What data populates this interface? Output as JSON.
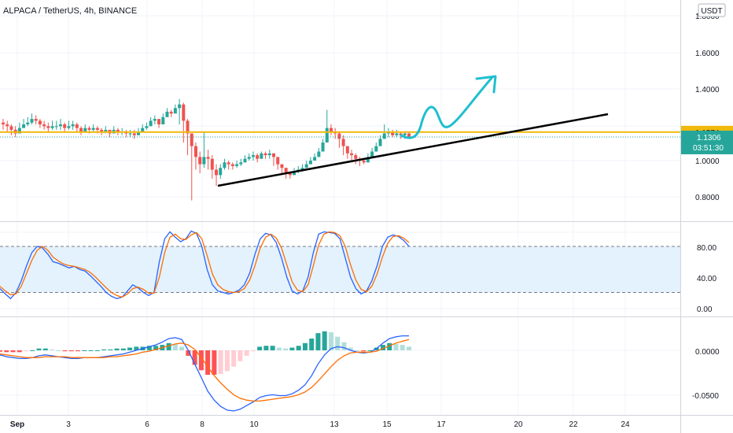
{
  "header": {
    "title": "ALPACA / TetherUS, 4h, BINANCE",
    "currency_badge": "USDT"
  },
  "colors": {
    "up": "#26a69a",
    "down": "#ef5350",
    "hline": "#f0b90b",
    "trendline": "#000000",
    "projection": "#1fbfd0",
    "k_line": "#2962ff",
    "d_line": "#ff6d00",
    "stoch_band": "#e3f2fd",
    "hist_up_strong": "#26a69a",
    "hist_up_weak": "#b2dfdb",
    "hist_down_strong": "#ff5252",
    "hist_down_weak": "#ffcdd2"
  },
  "chart_data": [
    {
      "type": "candlestick",
      "title": "ALPACA / TetherUS, 4h, BINANCE",
      "y_ticks": [
        "1.8000",
        "1.6000",
        "1.4000",
        "1.0000",
        "0.8000"
      ],
      "ylim": [
        0.7,
        1.8
      ],
      "x_ticks": [
        "Sep",
        "3",
        "6",
        "8",
        "10",
        "13",
        "15",
        "17",
        "20",
        "22",
        "24"
      ],
      "horizontal_line": {
        "value": 1.1574,
        "label": "1.1574"
      },
      "last_price": {
        "value": 1.1306,
        "label": "1.1306",
        "countdown": "03:51:30"
      },
      "closes": [
        1.2,
        1.19,
        1.17,
        1.15,
        1.18,
        1.2,
        1.21,
        1.23,
        1.22,
        1.2,
        1.19,
        1.18,
        1.19,
        1.19,
        1.2,
        1.18,
        1.19,
        1.2,
        1.18,
        1.16,
        1.18,
        1.17,
        1.18,
        1.17,
        1.16,
        1.17,
        1.15,
        1.17,
        1.16,
        1.16,
        1.15,
        1.15,
        1.14,
        1.16,
        1.18,
        1.19,
        1.22,
        1.23,
        1.2,
        1.24,
        1.27,
        1.26,
        1.29,
        1.31,
        1.22,
        1.15,
        1.08,
        1.02,
        0.98,
        1.02,
        1.01,
        0.95,
        0.92,
        0.96,
        0.99,
        0.98,
        0.97,
        0.98,
        0.99,
        1.01,
        1.02,
        1.03,
        1.01,
        1.04,
        1.03,
        1.04,
        1.02,
        0.98,
        0.96,
        0.93,
        0.92,
        0.94,
        0.95,
        0.96,
        0.98,
        1.0,
        1.02,
        1.05,
        1.1,
        1.18,
        1.16,
        1.15,
        1.12,
        1.08,
        1.04,
        1.03,
        1.01,
        1.0,
        0.99,
        1.02,
        1.05,
        1.08,
        1.12,
        1.15,
        1.16,
        1.14,
        1.15,
        1.14,
        1.15,
        1.13
      ],
      "lows": [
        1.17,
        1.16,
        1.14,
        1.13,
        1.15,
        1.18,
        1.19,
        1.2,
        1.2,
        1.18,
        1.17,
        1.16,
        1.17,
        1.17,
        1.17,
        1.16,
        1.17,
        1.17,
        1.16,
        1.14,
        1.16,
        1.15,
        1.16,
        1.15,
        1.14,
        1.15,
        1.13,
        1.15,
        1.14,
        1.14,
        1.13,
        1.13,
        1.12,
        1.14,
        1.16,
        1.17,
        1.2,
        1.2,
        1.18,
        1.22,
        1.25,
        1.24,
        1.27,
        1.2,
        1.1,
        1.03,
        0.78,
        0.95,
        0.93,
        0.96,
        0.95,
        0.9,
        0.86,
        0.9,
        0.95,
        0.95,
        0.95,
        0.96,
        0.97,
        0.99,
        1.0,
        1.0,
        0.99,
        1.01,
        1.01,
        1.01,
        0.97,
        0.95,
        0.92,
        0.9,
        0.9,
        0.92,
        0.93,
        0.94,
        0.96,
        0.98,
        1.0,
        1.03,
        1.08,
        1.12,
        1.14,
        1.12,
        1.07,
        1.03,
        1.01,
        1.0,
        0.98,
        0.97,
        0.98,
        1.0,
        1.03,
        1.06,
        1.1,
        1.12,
        1.13,
        1.13,
        1.13,
        1.12,
        1.12,
        1.12
      ],
      "highs": [
        1.23,
        1.22,
        1.2,
        1.19,
        1.21,
        1.23,
        1.24,
        1.26,
        1.25,
        1.23,
        1.22,
        1.21,
        1.22,
        1.22,
        1.23,
        1.21,
        1.22,
        1.22,
        1.21,
        1.19,
        1.2,
        1.19,
        1.2,
        1.19,
        1.18,
        1.19,
        1.17,
        1.19,
        1.18,
        1.18,
        1.17,
        1.17,
        1.17,
        1.18,
        1.2,
        1.21,
        1.24,
        1.25,
        1.23,
        1.26,
        1.29,
        1.28,
        1.31,
        1.34,
        1.32,
        1.23,
        1.15,
        1.1,
        1.05,
        1.16,
        1.06,
        1.03,
        0.98,
        0.98,
        1.01,
        1.0,
        0.99,
        1.0,
        1.01,
        1.03,
        1.04,
        1.05,
        1.04,
        1.05,
        1.05,
        1.06,
        1.04,
        1.0,
        0.98,
        0.96,
        0.94,
        0.96,
        0.97,
        0.98,
        1.0,
        1.02,
        1.04,
        1.07,
        1.12,
        1.28,
        1.2,
        1.18,
        1.16,
        1.14,
        1.08,
        1.06,
        1.04,
        1.02,
        1.01,
        1.04,
        1.07,
        1.1,
        1.14,
        1.2,
        1.18,
        1.17,
        1.17,
        1.16,
        1.16,
        1.16
      ]
    },
    {
      "type": "line",
      "indicator": "stochastic",
      "y_ticks": [
        "80.00",
        "40.00",
        "0.00"
      ],
      "ylim": [
        -10,
        110
      ],
      "band": [
        20,
        80
      ],
      "series": [
        {
          "values": [
            25,
            18,
            12,
            20,
            35,
            55,
            72,
            80,
            78,
            70,
            60,
            58,
            55,
            52,
            54,
            50,
            48,
            42,
            35,
            28,
            20,
            15,
            12,
            14,
            22,
            30,
            26,
            20,
            16,
            20,
            60,
            90,
            99,
            92,
            86,
            90,
            100,
            97,
            80,
            50,
            30,
            22,
            20,
            18,
            20,
            23,
            30,
            45,
            70,
            90,
            97,
            95,
            85,
            65,
            40,
            22,
            18,
            22,
            40,
            72,
            96,
            99,
            98,
            97,
            90,
            65,
            40,
            25,
            18,
            22,
            35,
            55,
            80,
            92,
            95,
            93,
            88,
            80
          ]
        },
        {
          "values": [
            28,
            22,
            17,
            18,
            28,
            45,
            62,
            75,
            80,
            75,
            66,
            61,
            57,
            55,
            54,
            52,
            50,
            46,
            40,
            33,
            26,
            20,
            16,
            14,
            18,
            25,
            27,
            24,
            19,
            19,
            40,
            72,
            92,
            96,
            90,
            89,
            95,
            98,
            90,
            68,
            44,
            30,
            24,
            21,
            20,
            21,
            25,
            36,
            55,
            78,
            92,
            96,
            91,
            78,
            56,
            34,
            23,
            21,
            30,
            55,
            82,
            96,
            99,
            98,
            94,
            80,
            56,
            36,
            24,
            21,
            28,
            44,
            66,
            84,
            93,
            94,
            91,
            85
          ]
        }
      ]
    },
    {
      "type": "line",
      "indicator": "macd",
      "y_ticks": [
        "0.0000",
        "-0.0500"
      ],
      "ylim": [
        -0.07,
        0.025
      ],
      "series": [
        {
          "values": [
            -0.005,
            -0.007,
            -0.008,
            -0.009,
            -0.009,
            -0.008,
            -0.006,
            -0.005,
            -0.006,
            -0.007,
            -0.008,
            -0.009,
            -0.009,
            -0.008,
            -0.008,
            -0.008,
            -0.007,
            -0.006,
            -0.005,
            -0.004,
            -0.002,
            0.0,
            0.002,
            0.004,
            0.006,
            0.009,
            0.013,
            0.014,
            0.012,
            0.0,
            -0.015,
            -0.03,
            -0.045,
            -0.055,
            -0.062,
            -0.066,
            -0.067,
            -0.065,
            -0.061,
            -0.057,
            -0.052,
            -0.05,
            -0.049,
            -0.05,
            -0.05,
            -0.048,
            -0.044,
            -0.038,
            -0.028,
            -0.015,
            -0.005,
            0.002,
            0.004,
            0.003,
            0.0,
            -0.002,
            -0.003,
            -0.002,
            0.002,
            0.008,
            0.013,
            0.015,
            0.016,
            0.016
          ]
        },
        {
          "values": [
            -0.004,
            -0.005,
            -0.006,
            -0.007,
            -0.008,
            -0.008,
            -0.008,
            -0.007,
            -0.007,
            -0.007,
            -0.007,
            -0.008,
            -0.008,
            -0.008,
            -0.008,
            -0.008,
            -0.008,
            -0.007,
            -0.007,
            -0.006,
            -0.005,
            -0.004,
            -0.002,
            -0.001,
            0.001,
            0.003,
            0.005,
            0.007,
            0.008,
            0.006,
            0.001,
            -0.008,
            -0.018,
            -0.028,
            -0.036,
            -0.043,
            -0.049,
            -0.053,
            -0.055,
            -0.056,
            -0.056,
            -0.055,
            -0.054,
            -0.053,
            -0.052,
            -0.051,
            -0.049,
            -0.046,
            -0.041,
            -0.034,
            -0.026,
            -0.018,
            -0.011,
            -0.006,
            -0.003,
            -0.002,
            -0.002,
            -0.002,
            -0.001,
            0.002,
            0.005,
            0.008,
            0.01,
            0.012
          ]
        }
      ],
      "histogram": [
        -0.0015,
        -0.002,
        -0.002,
        -0.002,
        -0.001,
        0.0,
        0.002,
        0.002,
        0.001,
        0.0,
        -0.001,
        -0.001,
        -0.001,
        0.0,
        0.0,
        0.0,
        0.001,
        0.001,
        0.002,
        0.002,
        0.003,
        0.004,
        0.004,
        0.005,
        0.005,
        0.006,
        0.008,
        0.007,
        0.004,
        -0.006,
        -0.016,
        -0.022,
        -0.027,
        -0.027,
        -0.026,
        -0.023,
        -0.018,
        -0.012,
        -0.006,
        -0.001,
        0.004,
        0.005,
        0.005,
        0.003,
        0.002,
        0.003,
        0.005,
        0.008,
        0.013,
        0.019,
        0.021,
        0.02,
        0.015,
        0.009,
        0.003,
        0.0,
        -0.001,
        0.0,
        0.003,
        0.006,
        0.008,
        0.007,
        0.006,
        0.004
      ]
    }
  ]
}
